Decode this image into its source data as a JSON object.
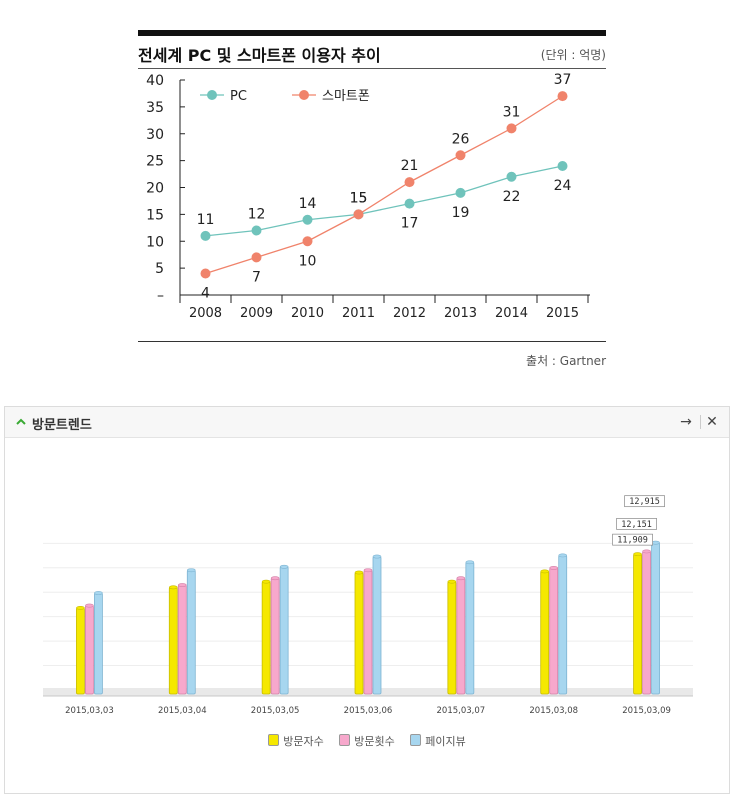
{
  "figure1": {
    "title": "전세계 PC 및 스마트폰 이용자 추이",
    "unit": "(단위 : 억명)",
    "source": "출처 : Gartner"
  },
  "panel": {
    "title": "방문트렌드"
  },
  "chart_data": [
    {
      "type": "line",
      "title": "전세계 PC 및 스마트폰 이용자 추이",
      "categories": [
        "2008",
        "2009",
        "2010",
        "2011",
        "2012",
        "2013",
        "2014",
        "2015"
      ],
      "yticks": [
        "40",
        "35",
        "30",
        "25",
        "20",
        "15",
        "10",
        "5",
        "–"
      ],
      "ylim": [
        0,
        40
      ],
      "series": [
        {
          "name": "PC",
          "color": "#6fc3bb",
          "values": [
            11,
            12,
            14,
            15,
            17,
            19,
            22,
            24
          ]
        },
        {
          "name": "스마트폰",
          "color": "#f0836b",
          "values": [
            4,
            7,
            10,
            15,
            21,
            26,
            31,
            37
          ]
        }
      ],
      "legend": "top-left",
      "grid": false
    },
    {
      "type": "bar",
      "title": "",
      "categories": [
        "2015,03,03",
        "2015,03,04",
        "2015,03,05",
        "2015,03,06",
        "2015,03,07",
        "2015,03,08",
        "2015,03,09"
      ],
      "ylim": [
        0,
        13500
      ],
      "series": [
        {
          "name": "방문자수",
          "color": "#f5e800",
          "values": [
            7200,
            9000,
            9500,
            10300,
            9500,
            10400,
            11909
          ]
        },
        {
          "name": "방문횟수",
          "color": "#f7a8cc",
          "values": [
            7400,
            9200,
            9800,
            10500,
            9800,
            10700,
            12151
          ]
        },
        {
          "name": "페이지뷰",
          "color": "#a7d6ef",
          "values": [
            8500,
            10500,
            10800,
            11700,
            11200,
            11800,
            12915
          ]
        }
      ],
      "data_labels": [
        "11,909",
        "12,151",
        "12,915"
      ],
      "legend": "bottom-center",
      "grid": true
    }
  ]
}
